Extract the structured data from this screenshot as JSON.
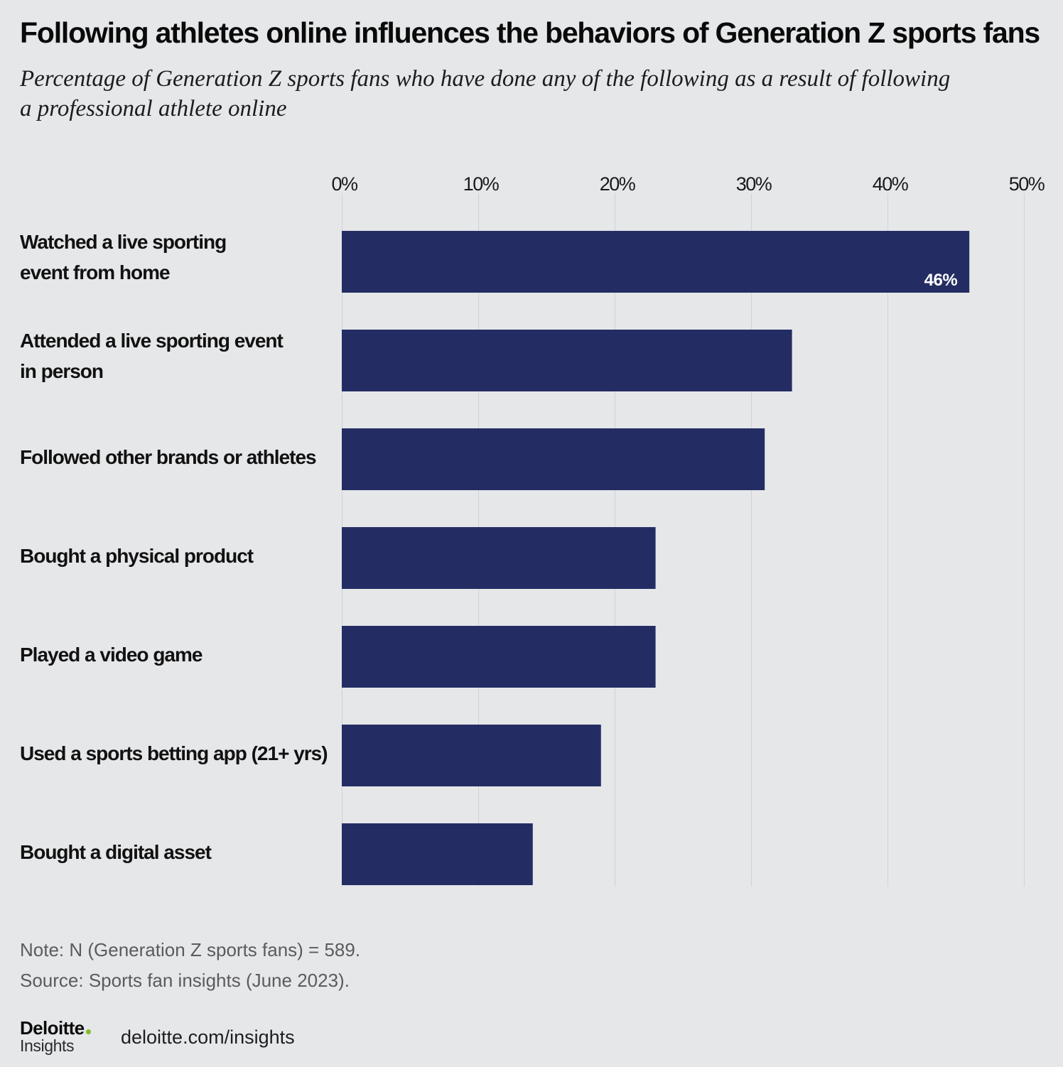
{
  "chart_data": {
    "type": "bar",
    "orientation": "horizontal",
    "title": "Following athletes online influences the behaviors of Generation Z sports fans",
    "subtitle": "Percentage of Generation Z sports fans who have done any of the following as a result of following\na professional athlete online",
    "categories": [
      "Watched a live sporting\nevent from home",
      "Attended a live sporting event\nin person",
      "Followed other brands or athletes",
      "Bought a physical product",
      "Played a video game",
      "Used a sports betting app (21+ yrs)",
      "Bought a digital asset"
    ],
    "values": [
      46,
      33,
      31,
      23,
      23,
      19,
      14
    ],
    "data_labels": [
      "46%",
      null,
      null,
      null,
      null,
      null,
      null
    ],
    "x_ticks": [
      0,
      10,
      20,
      30,
      40,
      50
    ],
    "x_tick_labels": [
      "0%",
      "10%",
      "20%",
      "30%",
      "40%",
      "50%"
    ],
    "xlim": [
      0,
      50
    ],
    "x_axis_position": "top",
    "grid": "vertical",
    "legend": "none",
    "bar_color": "#242d63"
  },
  "notes": [
    "Note: N (Generation Z sports fans) = 589.",
    "Source: Sports fan insights (June 2023)."
  ],
  "footer": {
    "logo_brand": "Deloitte",
    "logo_product": "Insights",
    "url": "deloitte.com/insights"
  },
  "colors": {
    "background": "#e6e7e9",
    "gridline": "#d1d2d6",
    "logo_dot": "#86bc25"
  }
}
